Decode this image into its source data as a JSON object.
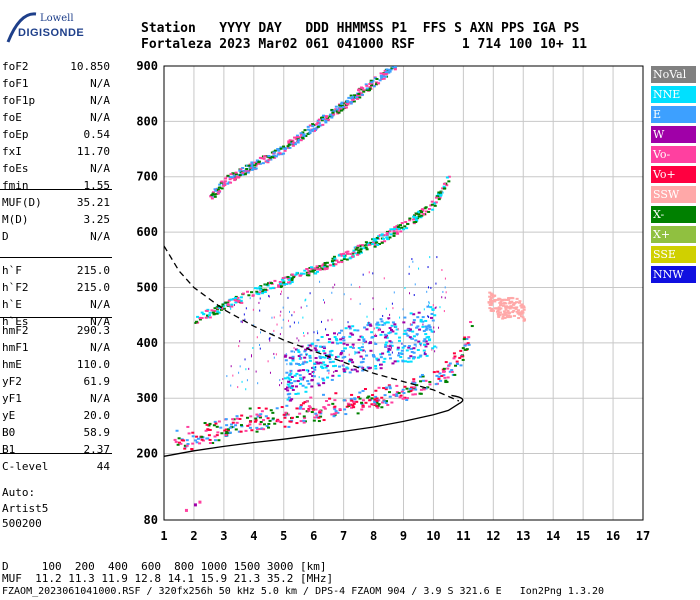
{
  "logo": {
    "line1": "Lowell",
    "line2": "DIGISONDE"
  },
  "header": {
    "line1": "Station   YYYY DAY   DDD HHMMSS P1  FFS S AXN PPS IGA PS",
    "line2": "Fortaleza 2023 Mar02 061 041000 RSF      1 714 100 10+ 11"
  },
  "params": {
    "group1": [
      {
        "name": "foF2",
        "value": "10.850"
      },
      {
        "name": "foF1",
        "value": "N/A"
      },
      {
        "name": "foF1p",
        "value": "N/A"
      },
      {
        "name": "foE",
        "value": "N/A"
      },
      {
        "name": "foEp",
        "value": "0.54"
      },
      {
        "name": "fxI",
        "value": "11.70"
      },
      {
        "name": "foEs",
        "value": "N/A"
      },
      {
        "name": "fmin",
        "value": "1.55"
      }
    ],
    "group2": [
      {
        "name": "MUF(D)",
        "value": "35.21"
      },
      {
        "name": "M(D)",
        "value": "3.25"
      },
      {
        "name": "D",
        "value": "N/A"
      }
    ],
    "group3": [
      {
        "name": "h`F",
        "value": "215.0"
      },
      {
        "name": "h`F2",
        "value": "215.0"
      },
      {
        "name": "h`E",
        "value": "N/A"
      },
      {
        "name": "h`Es",
        "value": "N/A"
      }
    ],
    "group4": [
      {
        "name": "hmF2",
        "value": "290.3"
      },
      {
        "name": "hmF1",
        "value": "N/A"
      },
      {
        "name": "hmE",
        "value": "110.0"
      },
      {
        "name": "yF2",
        "value": "61.9"
      },
      {
        "name": "yF1",
        "value": "N/A"
      },
      {
        "name": "yE",
        "value": "20.0"
      },
      {
        "name": "B0",
        "value": "58.9"
      },
      {
        "name": "B1",
        "value": "2.37"
      }
    ],
    "group5": [
      {
        "name": "C-level",
        "value": "44"
      }
    ]
  },
  "auto": {
    "line1": "Auto:",
    "line2": "Artist5",
    "line3": "500200"
  },
  "legend": [
    {
      "label": "NoVal",
      "color": "#808080"
    },
    {
      "label": "NNE",
      "color": "#00e0ff"
    },
    {
      "label": "E",
      "color": "#3da0ff"
    },
    {
      "label": "W",
      "color": "#a000a8"
    },
    {
      "label": "Vo-",
      "color": "#ff40a0"
    },
    {
      "label": "Vo+",
      "color": "#ff0040"
    },
    {
      "label": "SSW",
      "color": "#ffa8a8"
    },
    {
      "label": "X-",
      "color": "#008000"
    },
    {
      "label": "X+",
      "color": "#90c040"
    },
    {
      "label": "SSE",
      "color": "#d0d000"
    },
    {
      "label": "NNW",
      "color": "#1010e0"
    }
  ],
  "footer": {
    "line1": "D     100  200  400  600  800 1000 1500 3000 [km]",
    "line2": "MUF  11.2 11.3 11.9 12.8 14.1 15.9 21.3 35.2 [MHz]",
    "line3": "FZAOM_2023061041000.RSF / 320fx256h 50 kHz 5.0 km / DPS-4 FZAOM 904 / 3.9 S 321.6 E   Ion2Png 1.3.20"
  },
  "chart_data": {
    "type": "scatter",
    "x_ticks": [
      1,
      2,
      3,
      4,
      5,
      6,
      7,
      8,
      9,
      10,
      11,
      12,
      13,
      14,
      15,
      16,
      17
    ],
    "y_ticks": [
      80,
      200,
      300,
      400,
      500,
      600,
      700,
      800,
      900
    ],
    "xlim": [
      1,
      17
    ],
    "ylim": [
      80,
      900
    ],
    "grid": true,
    "legend_placement": "right",
    "traces": [
      {
        "name": "O-mode F trace",
        "color_key": [
          "Vo-",
          "Vo+",
          "X-",
          "E"
        ],
        "points": [
          [
            1.3,
            220
          ],
          [
            2,
            225
          ],
          [
            3,
            238
          ],
          [
            4,
            250
          ],
          [
            5,
            262
          ],
          [
            6,
            272
          ],
          [
            7,
            282
          ],
          [
            8,
            292
          ],
          [
            9,
            305
          ],
          [
            10,
            330
          ],
          [
            10.6,
            350
          ],
          [
            11,
            380
          ],
          [
            11.3,
            420
          ]
        ]
      },
      {
        "name": "second hop",
        "color_key": [
          "Vo-",
          "X-",
          "NNE"
        ],
        "points": [
          [
            2,
            440
          ],
          [
            3,
            465
          ],
          [
            4,
            490
          ],
          [
            5,
            510
          ],
          [
            6,
            530
          ],
          [
            7,
            555
          ],
          [
            8,
            580
          ],
          [
            9,
            610
          ],
          [
            10,
            650
          ],
          [
            10.5,
            700
          ]
        ]
      },
      {
        "name": "third hop",
        "color_key": [
          "Vo-",
          "X-",
          "E"
        ],
        "points": [
          [
            2.5,
            660
          ],
          [
            3,
            690
          ],
          [
            4,
            720
          ],
          [
            5,
            750
          ],
          [
            6,
            790
          ],
          [
            7,
            830
          ],
          [
            8,
            870
          ],
          [
            8.7,
            900
          ]
        ]
      },
      {
        "name": "scattered upper",
        "color_key": [
          "E",
          "W",
          "NNE"
        ],
        "points": [
          [
            5,
            320
          ],
          [
            6,
            345
          ],
          [
            7,
            370
          ],
          [
            8,
            380
          ],
          [
            9,
            390
          ],
          [
            10,
            410
          ]
        ]
      },
      {
        "name": "SSW blob",
        "color_key": [
          "SSW"
        ],
        "points": [
          [
            11.8,
            470
          ],
          [
            12.2,
            455
          ],
          [
            12.6,
            460
          ],
          [
            13,
            450
          ]
        ]
      }
    ],
    "profile_solid": [
      [
        1,
        195
      ],
      [
        2,
        205
      ],
      [
        3,
        213
      ],
      [
        4,
        220
      ],
      [
        5,
        226
      ],
      [
        6,
        233
      ],
      [
        7,
        240
      ],
      [
        8,
        248
      ],
      [
        9,
        258
      ],
      [
        10,
        270
      ],
      [
        10.5,
        278
      ],
      [
        10.85,
        290
      ]
    ],
    "profile_dashed": [
      [
        1,
        575
      ],
      [
        1.5,
        530
      ],
      [
        2,
        500
      ],
      [
        3,
        460
      ],
      [
        4,
        430
      ],
      [
        5,
        405
      ],
      [
        6,
        385
      ],
      [
        7,
        365
      ],
      [
        8,
        345
      ],
      [
        9,
        330
      ],
      [
        10,
        315
      ],
      [
        10.85,
        295
      ]
    ]
  }
}
